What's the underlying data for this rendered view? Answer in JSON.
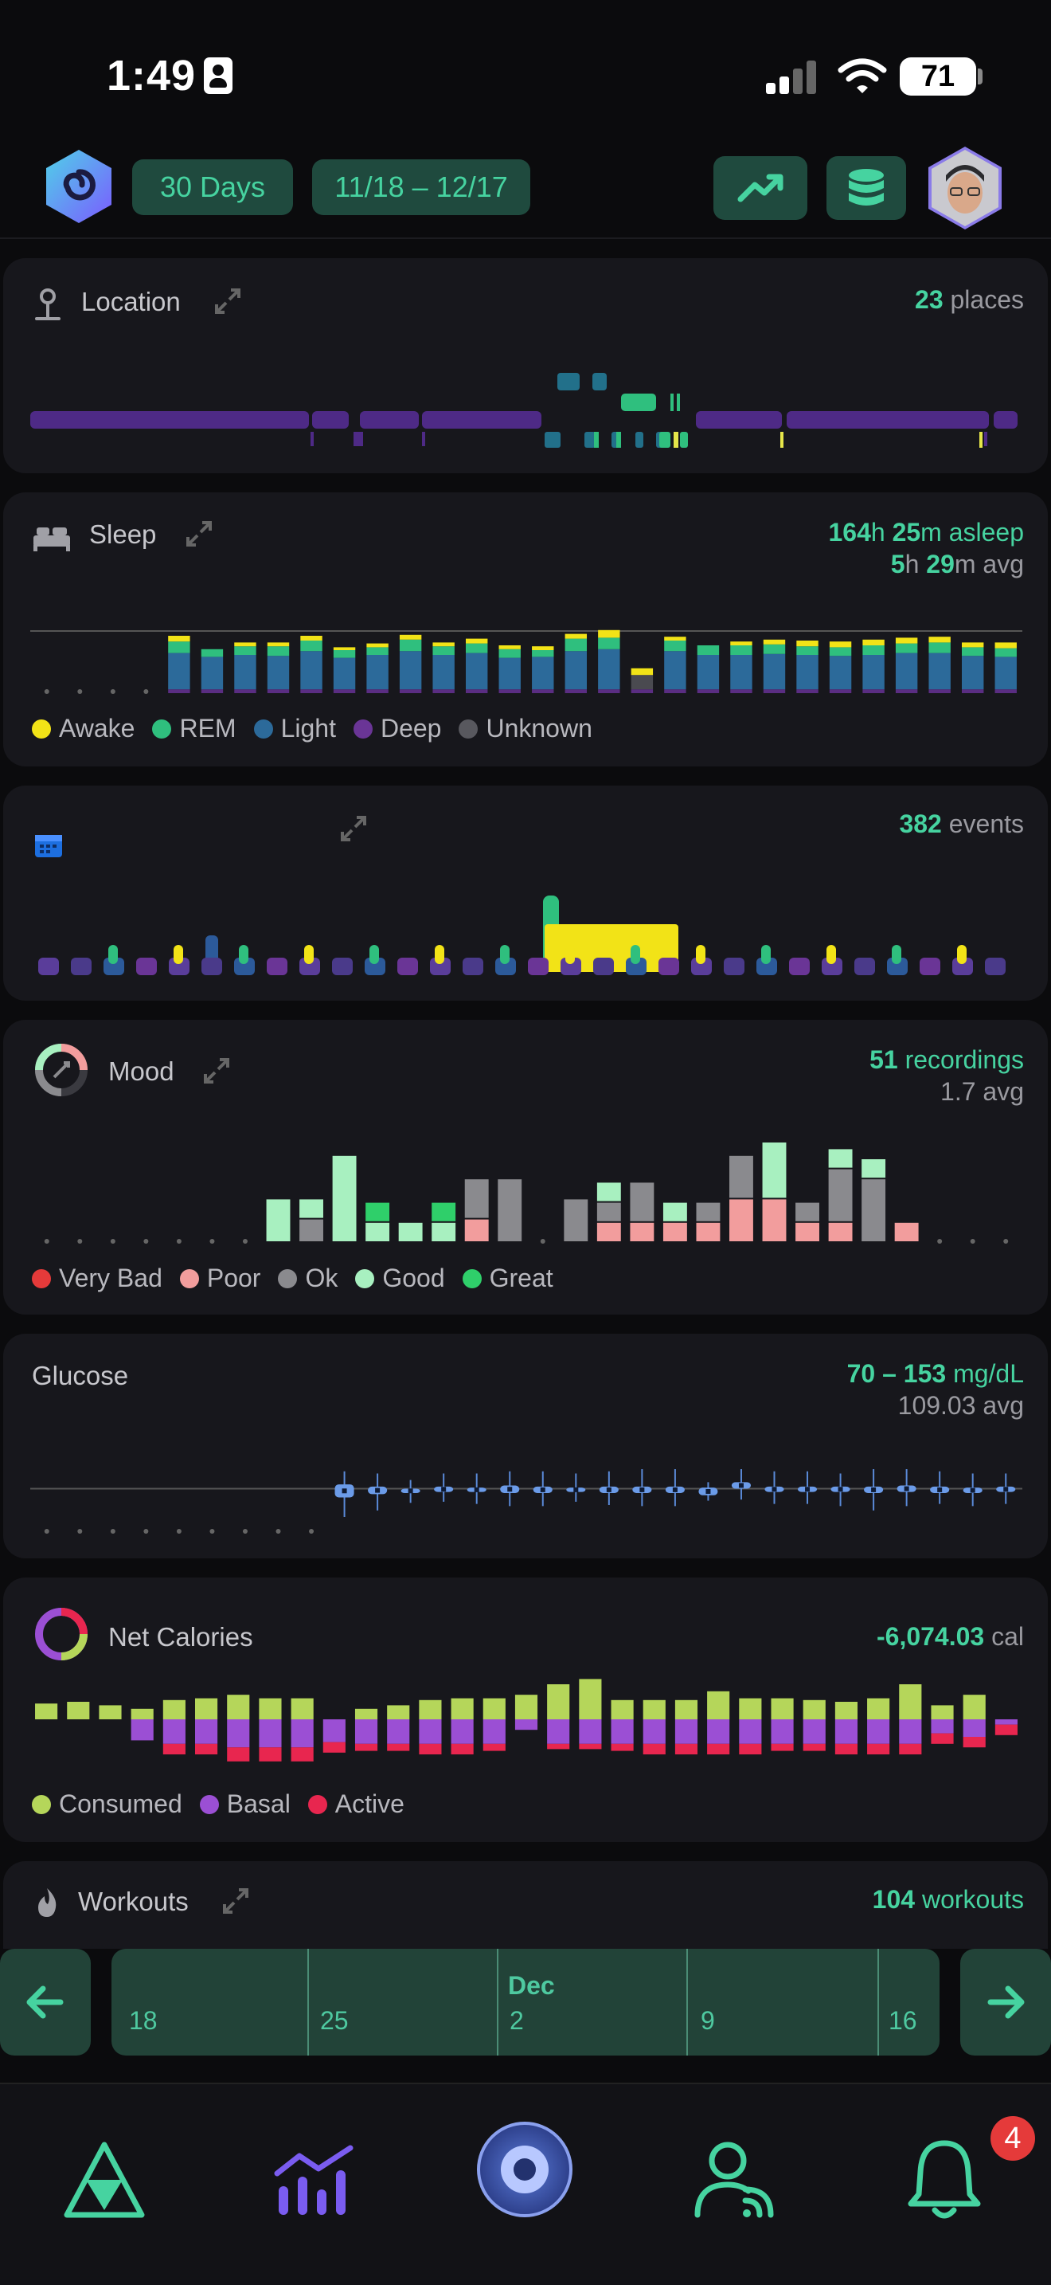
{
  "status_bar": {
    "time": "1:49",
    "battery": "71"
  },
  "header": {
    "range_label": "30 Days",
    "date_range": "11/18 – 12/17"
  },
  "location": {
    "title": "Location",
    "count": "23",
    "unit": "places"
  },
  "sleep": {
    "title": "Sleep",
    "total_h": "164",
    "total_m": "25",
    "total_suffix": "asleep",
    "avg_h": "5",
    "avg_m": "29",
    "avg_suffix": "avg",
    "legend": [
      "Awake",
      "REM",
      "Light",
      "Deep",
      "Unknown"
    ],
    "colors": {
      "awake": "#f2e317",
      "rem": "#2fbf7e",
      "light": "#2c6a9a",
      "deep": "#5a2d82",
      "unknown": "#4a4a50"
    },
    "nights": [
      {
        "light": 0,
        "rem": 0,
        "awake": 0
      },
      {
        "light": 0,
        "rem": 0,
        "awake": 0
      },
      {
        "light": 0,
        "rem": 0,
        "awake": 0
      },
      {
        "light": 0,
        "rem": 0,
        "awake": 0
      },
      {
        "light": 3.8,
        "rem": 1.2,
        "awake": 0.6
      },
      {
        "light": 3.4,
        "rem": 0.8,
        "awake": 0
      },
      {
        "light": 3.6,
        "rem": 0.9,
        "awake": 0.4
      },
      {
        "light": 3.5,
        "rem": 1.0,
        "awake": 0.4
      },
      {
        "light": 4.0,
        "rem": 1.1,
        "awake": 0.5
      },
      {
        "light": 3.3,
        "rem": 0.8,
        "awake": 0.3
      },
      {
        "light": 3.6,
        "rem": 0.8,
        "awake": 0.4
      },
      {
        "light": 4.0,
        "rem": 1.2,
        "awake": 0.5
      },
      {
        "light": 3.6,
        "rem": 0.9,
        "awake": 0.4
      },
      {
        "light": 3.8,
        "rem": 1.0,
        "awake": 0.5
      },
      {
        "light": 3.3,
        "rem": 0.9,
        "awake": 0.4
      },
      {
        "light": 3.4,
        "rem": 0.7,
        "awake": 0.4
      },
      {
        "light": 4.0,
        "rem": 1.3,
        "awake": 0.5
      },
      {
        "light": 4.2,
        "rem": 1.2,
        "awake": 0.8
      },
      {
        "unknown": 1.5,
        "awake": 0.7
      },
      {
        "light": 4.0,
        "rem": 1.1,
        "awake": 0.4
      },
      {
        "light": 3.6,
        "rem": 1.0,
        "awake": 0
      },
      {
        "light": 3.6,
        "rem": 1.0,
        "awake": 0.4
      },
      {
        "light": 3.7,
        "rem": 1.0,
        "awake": 0.5
      },
      {
        "light": 3.6,
        "rem": 0.9,
        "awake": 0.6
      },
      {
        "light": 3.5,
        "rem": 0.9,
        "awake": 0.6
      },
      {
        "light": 3.6,
        "rem": 1.0,
        "awake": 0.6
      },
      {
        "light": 3.8,
        "rem": 1.0,
        "awake": 0.6
      },
      {
        "light": 3.8,
        "rem": 1.1,
        "awake": 0.6
      },
      {
        "light": 3.5,
        "rem": 0.9,
        "awake": 0.5
      },
      {
        "light": 3.4,
        "rem": 0.9,
        "awake": 0.6
      }
    ]
  },
  "calendar": {
    "count": "382",
    "unit": "events"
  },
  "mood": {
    "title": "Mood",
    "count": "51",
    "unit": "recordings",
    "avg": "1.7 avg",
    "legend": [
      "Very Bad",
      "Poor",
      "Ok",
      "Good",
      "Great"
    ],
    "colors": {
      "very_bad": "#e53a3a",
      "poor": "#f29d9d",
      "ok": "#8a8a8e",
      "good": "#a8f0c0",
      "great": "#2fcf6a"
    },
    "days": [
      {},
      {},
      {},
      {},
      {},
      {},
      {},
      {
        "good": 1.3
      },
      {
        "ok": 0.7,
        "good": 0.6
      },
      {
        "good": 2.6
      },
      {
        "good": 0.6,
        "great": 0.6
      },
      {
        "good": 0.6
      },
      {
        "good": 0.6,
        "great": 0.6
      },
      {
        "poor": 0.7,
        "ok": 1.2
      },
      {
        "ok": 1.9
      },
      {},
      {
        "ok": 1.3
      },
      {
        "poor": 0.6,
        "ok": 0.6,
        "good": 0.6
      },
      {
        "poor": 0.6,
        "ok": 1.2
      },
      {
        "poor": 0.6,
        "good": 0.6
      },
      {
        "poor": 0.6,
        "ok": 0.6
      },
      {
        "poor": 1.3,
        "ok": 1.3
      },
      {
        "poor": 1.3,
        "good": 1.7
      },
      {
        "poor": 0.6,
        "ok": 0.6
      },
      {
        "poor": 0.6,
        "ok": 1.6,
        "good": 0.6
      },
      {
        "ok": 1.9,
        "good": 0.6
      },
      {
        "poor": 0.6
      },
      {},
      {},
      {}
    ]
  },
  "glucose": {
    "title": "Glucose",
    "range": "70 – 153",
    "unit": "mg/dL",
    "avg": "109.03 avg",
    "ylim": [
      60,
      170
    ],
    "boxes": [
      null,
      null,
      null,
      null,
      null,
      null,
      null,
      null,
      null,
      {
        "min": 82,
        "q1": 100,
        "q3": 112,
        "max": 124
      },
      {
        "min": 88,
        "q1": 103,
        "q3": 110,
        "max": 122
      },
      {
        "min": 95,
        "q1": 104,
        "q3": 108,
        "max": 116
      },
      {
        "min": 96,
        "q1": 105,
        "q3": 110,
        "max": 122
      },
      {
        "min": 94,
        "q1": 105,
        "q3": 109,
        "max": 122
      },
      {
        "min": 92,
        "q1": 104,
        "q3": 111,
        "max": 124
      },
      {
        "min": 92,
        "q1": 104,
        "q3": 110,
        "max": 124
      },
      {
        "min": 96,
        "q1": 105,
        "q3": 109,
        "max": 122
      },
      {
        "min": 93,
        "q1": 104,
        "q3": 110,
        "max": 124
      },
      {
        "min": 92,
        "q1": 104,
        "q3": 110,
        "max": 126
      },
      {
        "min": 92,
        "q1": 104,
        "q3": 110,
        "max": 126
      },
      {
        "min": 97,
        "q1": 102,
        "q3": 109,
        "max": 114
      },
      {
        "min": 98,
        "q1": 108,
        "q3": 114,
        "max": 126
      },
      {
        "min": 94,
        "q1": 105,
        "q3": 110,
        "max": 124
      },
      {
        "min": 94,
        "q1": 105,
        "q3": 110,
        "max": 124
      },
      {
        "min": 92,
        "q1": 105,
        "q3": 110,
        "max": 122
      },
      {
        "min": 88,
        "q1": 104,
        "q3": 110,
        "max": 126
      },
      {
        "min": 92,
        "q1": 105,
        "q3": 111,
        "max": 126
      },
      {
        "min": 94,
        "q1": 104,
        "q3": 110,
        "max": 124
      },
      {
        "min": 92,
        "q1": 104,
        "q3": 109,
        "max": 122
      },
      {
        "min": 94,
        "q1": 105,
        "q3": 110,
        "max": 122
      }
    ]
  },
  "calories": {
    "title": "Net Calories",
    "value": "-6,074.03",
    "unit": "cal",
    "legend": [
      "Consumed",
      "Basal",
      "Active"
    ],
    "colors": {
      "consumed": "#b5d65a",
      "basal": "#9b4fd4",
      "active": "#e8264f"
    },
    "days": [
      {
        "c": 0.9,
        "b": 0,
        "a": 0
      },
      {
        "c": 1.0,
        "b": 0,
        "a": 0
      },
      {
        "c": 0.8,
        "b": 0,
        "a": 0
      },
      {
        "c": 0.6,
        "b": 1.2,
        "a": 0
      },
      {
        "c": 1.1,
        "b": 1.4,
        "a": 0.6
      },
      {
        "c": 1.2,
        "b": 1.4,
        "a": 0.6
      },
      {
        "c": 1.4,
        "b": 1.6,
        "a": 0.8
      },
      {
        "c": 1.2,
        "b": 1.6,
        "a": 0.8
      },
      {
        "c": 1.2,
        "b": 1.6,
        "a": 0.8
      },
      {
        "c": 0,
        "b": 1.3,
        "a": 0.6
      },
      {
        "c": 0.6,
        "b": 1.4,
        "a": 0.4
      },
      {
        "c": 0.8,
        "b": 1.4,
        "a": 0.4
      },
      {
        "c": 1.1,
        "b": 1.4,
        "a": 0.6
      },
      {
        "c": 1.2,
        "b": 1.4,
        "a": 0.6
      },
      {
        "c": 1.2,
        "b": 1.4,
        "a": 0.4
      },
      {
        "c": 1.4,
        "b": 0.6,
        "a": 0
      },
      {
        "c": 2.0,
        "b": 1.4,
        "a": 0.3
      },
      {
        "c": 2.3,
        "b": 1.4,
        "a": 0.3
      },
      {
        "c": 1.1,
        "b": 1.4,
        "a": 0.4
      },
      {
        "c": 1.1,
        "b": 1.4,
        "a": 0.6
      },
      {
        "c": 1.1,
        "b": 1.4,
        "a": 0.6
      },
      {
        "c": 1.6,
        "b": 1.4,
        "a": 0.6
      },
      {
        "c": 1.2,
        "b": 1.4,
        "a": 0.6
      },
      {
        "c": 1.2,
        "b": 1.4,
        "a": 0.4
      },
      {
        "c": 1.1,
        "b": 1.4,
        "a": 0.4
      },
      {
        "c": 1.0,
        "b": 1.4,
        "a": 0.6
      },
      {
        "c": 1.2,
        "b": 1.4,
        "a": 0.6
      },
      {
        "c": 2.0,
        "b": 1.4,
        "a": 0.6
      },
      {
        "c": 0.8,
        "b": 0.8,
        "a": 0.6
      },
      {
        "c": 1.4,
        "b": 1.0,
        "a": 0.6
      },
      {
        "c": 0,
        "b": 0.3,
        "a": 0.6
      }
    ]
  },
  "workouts": {
    "title": "Workouts",
    "count": "104",
    "unit": "workouts"
  },
  "timeline": {
    "month": "Dec",
    "labels": [
      "18",
      "25",
      "2",
      "9",
      "16"
    ]
  },
  "tabbar": {
    "badge": "4"
  }
}
